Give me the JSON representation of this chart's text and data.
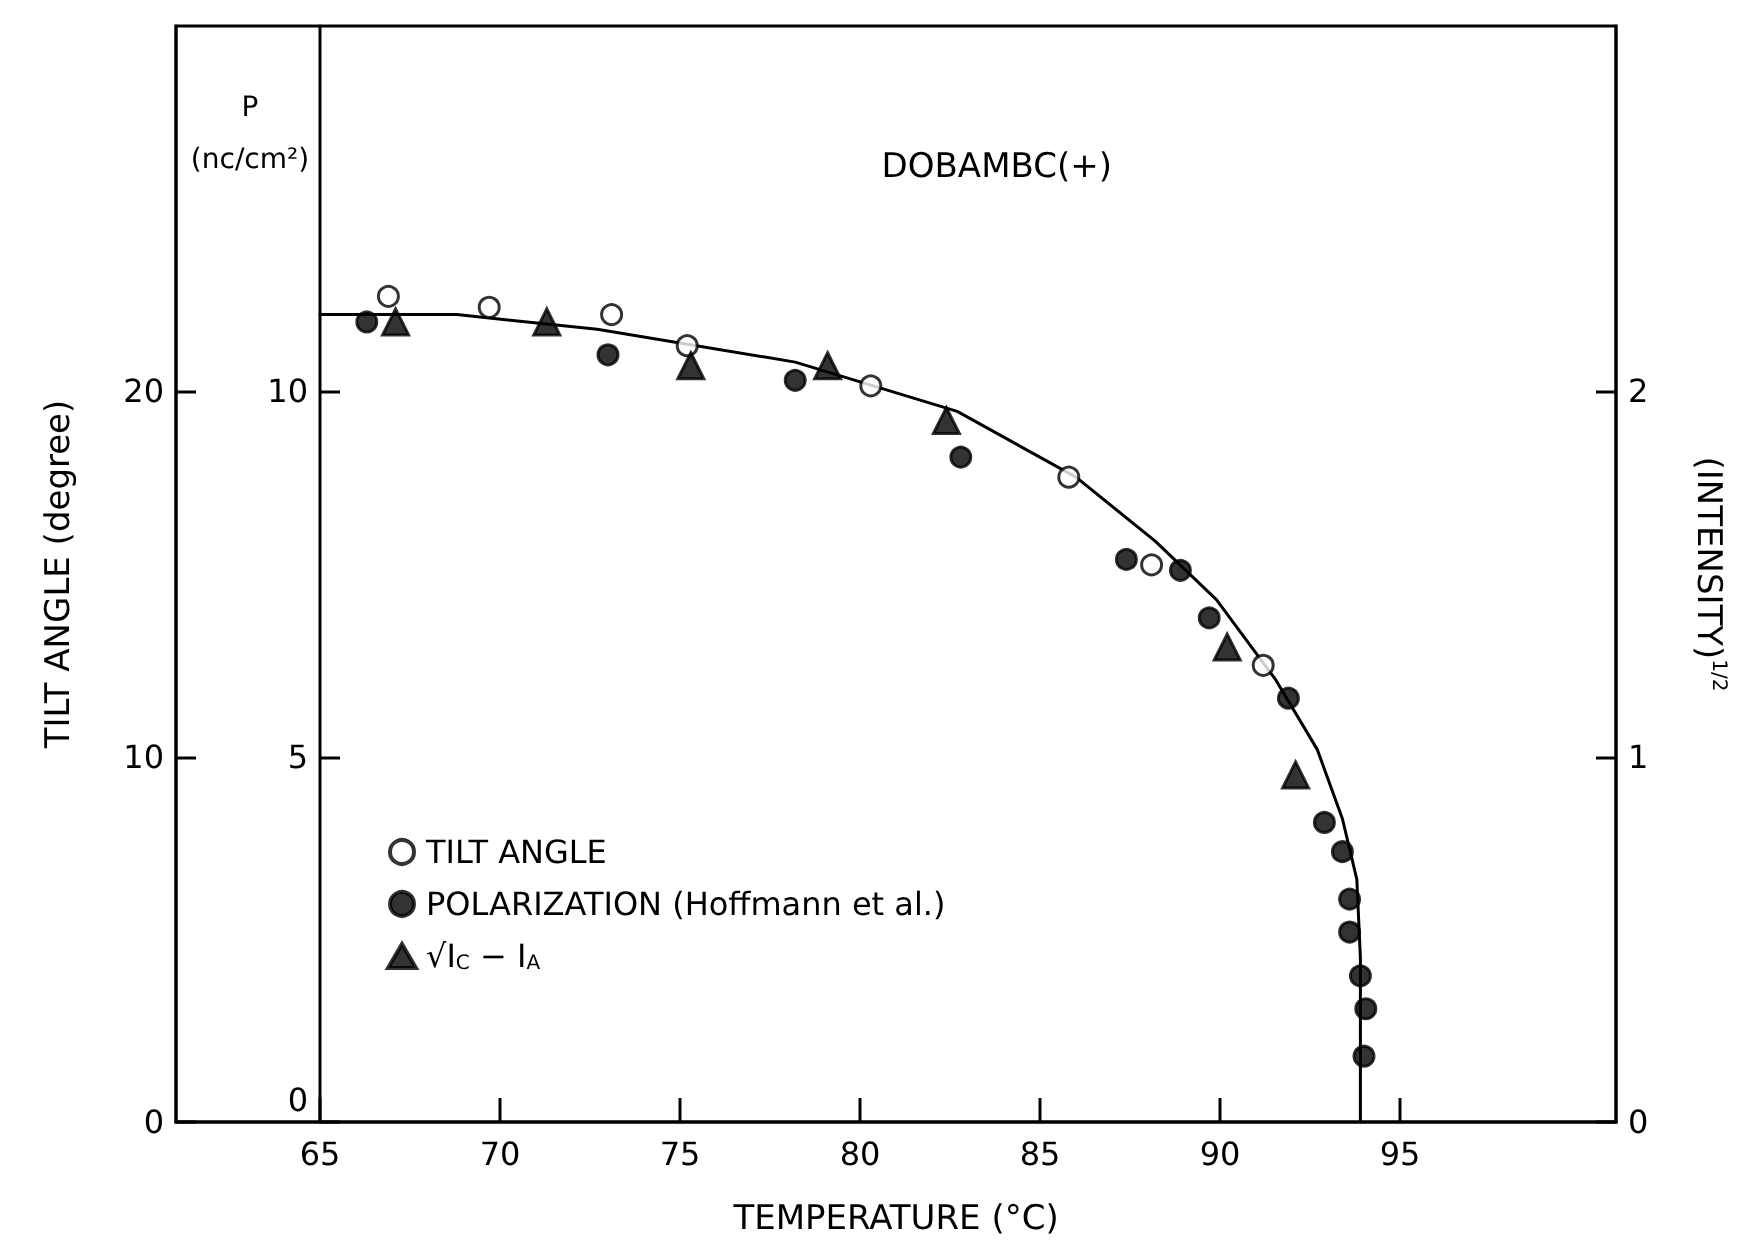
{
  "chart_data": {
    "type": "scatter",
    "xlabel": "TEMPERATURE (°C)",
    "ylabel": "TILT ANGLE (degree)",
    "y2label": "P (nc/cm²)",
    "y3label": "(INTENSITY)$^{1/2}$",
    "annotations": [
      "DOBAMBC(+)"
    ],
    "xlim": [
      61,
      101
    ],
    "xticks": [
      65,
      70,
      75,
      80,
      85,
      90,
      95
    ],
    "ylim": [
      0,
      30
    ],
    "yticks": [
      0,
      10,
      20
    ],
    "y2lim": [
      0,
      15
    ],
    "y2ticks": [
      0,
      5,
      10
    ],
    "y3lim": [
      0,
      3
    ],
    "y3ticks": [
      0,
      1,
      2
    ],
    "grid": false,
    "legend": "bottom left",
    "series": [
      {
        "name": "TILT ANGLE",
        "marker": "circle",
        "color": "#ffffff",
        "axis": "y",
        "x": [
          66.9,
          69.7,
          73.1,
          75.2,
          80.3,
          85.8,
          88.1,
          91.2
        ],
        "values": [
          22.6,
          22.3,
          22.1,
          21.25,
          20.15,
          17.65,
          15.25,
          12.5
        ]
      },
      {
        "name": "POLARIZATION (Hoffmann et al.)",
        "marker": "circle",
        "color": "#000000",
        "axis": "y2",
        "x": [
          66.3,
          73.0,
          78.2,
          82.8,
          87.4,
          88.9,
          89.7,
          91.9,
          92.9,
          93.4,
          93.6,
          93.6,
          93.9,
          94.05,
          94.0
        ],
        "values": [
          10.95,
          10.5,
          10.15,
          9.1,
          7.7,
          7.55,
          6.9,
          5.8,
          4.1,
          3.7,
          3.05,
          2.6,
          2.0,
          1.55,
          0.9
        ]
      },
      {
        "name": "√I$_{C}$ − I$_{A}$",
        "marker": "triangle",
        "color": "#000000",
        "axis": "y3",
        "x": [
          67.1,
          71.3,
          75.3,
          79.1,
          82.4,
          90.2,
          92.1
        ],
        "values": [
          2.19,
          2.19,
          2.07,
          2.07,
          1.92,
          1.3,
          0.95
        ]
      },
      {
        "type": "line",
        "marker": "none",
        "line_style": "solid",
        "color": "#000000",
        "axis": "y",
        "x": [
          65,
          68.8,
          72.7,
          78.2,
          82.7,
          86.0,
          88.2,
          89.9,
          91.55,
          92.7,
          93.4,
          93.8,
          93.9,
          93.9
        ],
        "values": [
          22.1,
          22.1,
          21.7,
          20.8,
          19.45,
          17.65,
          15.9,
          14.3,
          12.1,
          10.2,
          8.3,
          6.65,
          4.5,
          0
        ]
      }
    ]
  }
}
